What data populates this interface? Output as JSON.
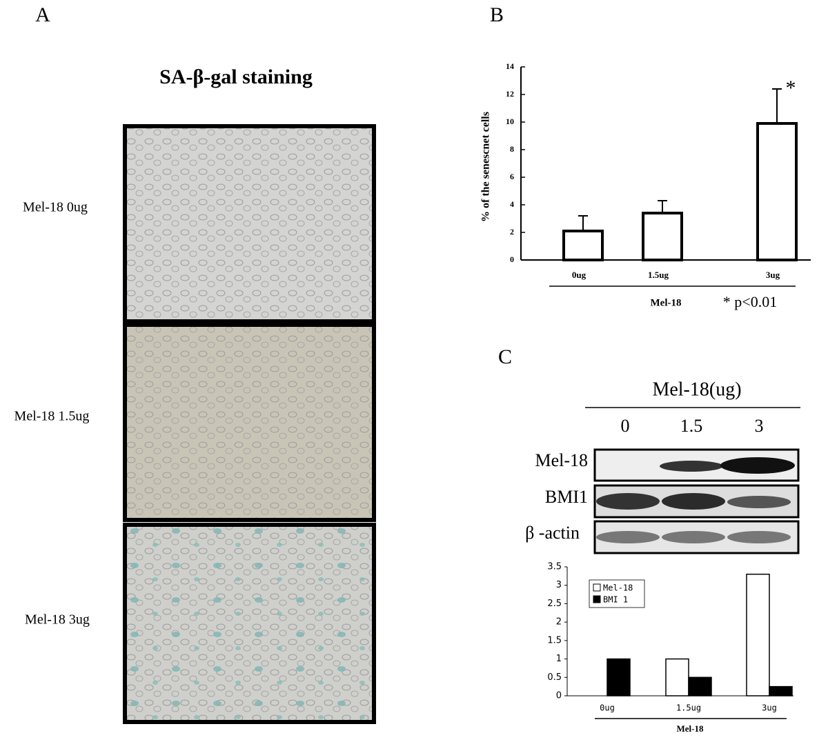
{
  "panel_labels": [
    "A",
    "B",
    "C"
  ],
  "panel_a": {
    "title": "SA-β-gal  staining",
    "rows": [
      "Mel-18  0ug",
      "Mel-18 1.5ug",
      "Mel-18  3ug"
    ]
  },
  "blot": {
    "title": "Mel-18(ug)",
    "lanes": [
      "0",
      "1.5",
      "3"
    ],
    "rows": [
      "Mel-18",
      "BMI1",
      "β -actin"
    ]
  },
  "chart_data": [
    {
      "type": "bar",
      "y_label": "% of the senescnet cells",
      "x_label": "Mel-18",
      "annotation": "* p<0.01",
      "marker": "*",
      "categories": [
        "0ug",
        "1.5ug",
        "3ug"
      ],
      "values": [
        2.1,
        3.4,
        9.9
      ],
      "errors": [
        1.1,
        0.9,
        2.5
      ],
      "color": "#ffffff",
      "ylim": [
        0,
        14
      ],
      "yticks": [
        0,
        2,
        4,
        6,
        8,
        10,
        12,
        14
      ]
    },
    {
      "type": "grouped_bar",
      "x_label": "Mel-18",
      "categories": [
        "0ug",
        "1.5ug",
        "3ug"
      ],
      "series": [
        {
          "name": "Mel-18",
          "color": "#ffffff",
          "values": [
            null,
            1,
            3.3
          ]
        },
        {
          "name": "BMI 1",
          "color": "#000000",
          "values": [
            1,
            0.5,
            0.25
          ]
        }
      ],
      "ylim": [
        0,
        3.5
      ],
      "yticks": [
        0,
        0.5,
        1,
        1.5,
        2,
        2.5,
        3,
        3.5
      ],
      "legend": "upper-left"
    }
  ]
}
